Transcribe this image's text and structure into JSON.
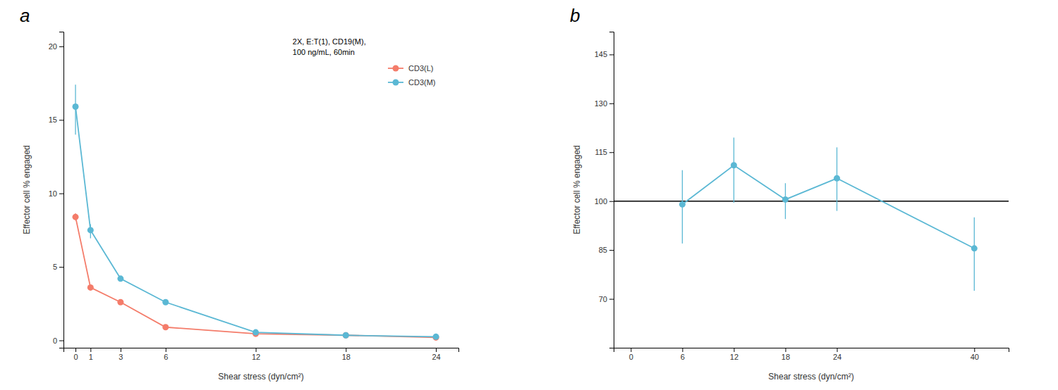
{
  "chart_data": [
    {
      "type": "line",
      "title": "a",
      "x_label": "Shear stress (dyn/cm²)",
      "y_label": "Effector cell % engaged",
      "annotation": "2X, E:T(1), CD19(M),\n100 ng/mL, 60min",
      "x": [
        0,
        1,
        3,
        6,
        12,
        18,
        24
      ],
      "xlim": [
        -0.8,
        25.5
      ],
      "xticks": [
        0,
        1,
        3,
        6,
        12,
        18,
        24
      ],
      "ylim": [
        -0.5,
        21
      ],
      "yticks": [
        0,
        5,
        10,
        15,
        20
      ],
      "grid": false,
      "legend": "upper right",
      "marker": "circle",
      "series": [
        {
          "name": "CD3(L)",
          "color": "#f47c6a",
          "values": [
            8.4,
            3.6,
            2.6,
            0.9,
            0.45,
            0.35,
            0.2
          ],
          "error": [
            0.25,
            0.15,
            0.15,
            0.1,
            0.05,
            0.08,
            0.05
          ]
        },
        {
          "name": "CD3(M)",
          "color": "#5bb8d4",
          "values": [
            15.9,
            7.5,
            4.2,
            2.6,
            0.55,
            0.35,
            0.25
          ],
          "error_low": [
            1.9,
            0.55,
            0.2,
            0.15,
            0.1,
            0.08,
            0.06
          ],
          "error_high": [
            1.5,
            0.4,
            0.15,
            0.12,
            0.08,
            0.06,
            0.05
          ]
        }
      ]
    },
    {
      "type": "line",
      "title": "b",
      "x_label": "Shear stress (dyn/cm²)",
      "y_label": "Effector cell % engaged",
      "x": [
        6,
        12,
        18,
        24,
        40
      ],
      "xlim": [
        -2,
        44
      ],
      "xticks": [
        0,
        6,
        12,
        18,
        24,
        40
      ],
      "ylim": [
        55,
        152
      ],
      "yticks": [
        70,
        85,
        100,
        115,
        130,
        145
      ],
      "grid": false,
      "hline": 100,
      "marker": "circle",
      "series": [
        {
          "color": "#5bb8d4",
          "values": [
            99.0,
            111.0,
            100.5,
            107.0,
            85.5
          ],
          "error_low": [
            12.0,
            11.5,
            6.0,
            10.0,
            13.0
          ],
          "error_high": [
            10.5,
            8.5,
            5.0,
            9.5,
            9.5
          ]
        }
      ]
    }
  ]
}
